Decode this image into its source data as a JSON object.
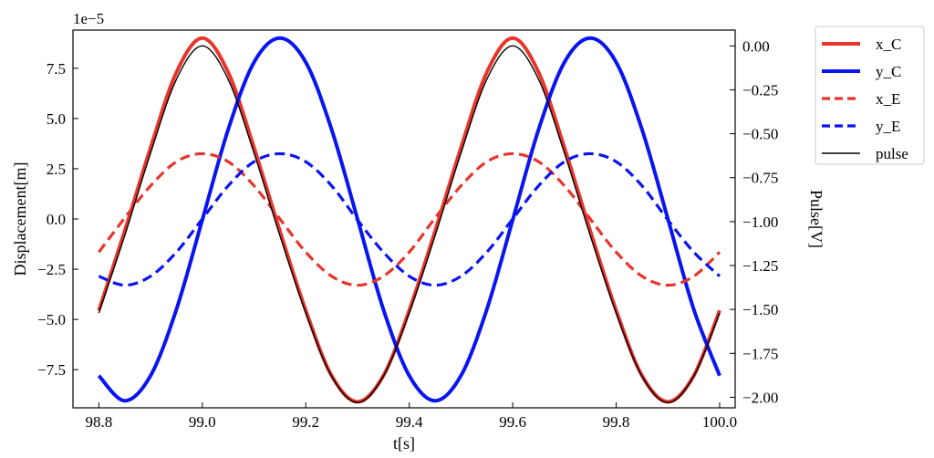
{
  "chart_data": {
    "type": "line",
    "xlabel": "t[s]",
    "ylabel": "Displacement[m]",
    "y2label": "Pulse[V]",
    "y_offset_text": "1e−5",
    "xlim": [
      98.75,
      100.03
    ],
    "ylim": [
      -9.4,
      9.4
    ],
    "y2lim": [
      -2.06,
      0.09
    ],
    "x_ticks": [
      98.8,
      99.0,
      99.2,
      99.4,
      99.6,
      99.8,
      100.0
    ],
    "x_tick_labels": [
      "98.8",
      "99.0",
      "99.2",
      "99.4",
      "99.6",
      "99.8",
      "100.0"
    ],
    "y_ticks": [
      -7.5,
      -5.0,
      -2.5,
      0.0,
      2.5,
      5.0,
      7.5
    ],
    "y_tick_labels": [
      "−7.5",
      "−5.0",
      "−2.5",
      "0.0",
      "2.5",
      "5.0",
      "7.5"
    ],
    "y2_ticks": [
      0.0,
      -0.25,
      -0.5,
      -0.75,
      -1.0,
      -1.25,
      -1.5,
      -1.75,
      -2.0
    ],
    "y2_tick_labels": [
      "0.00",
      "−0.25",
      "−0.50",
      "−0.75",
      "−1.00",
      "−1.25",
      "−1.50",
      "−1.75",
      "−2.00"
    ],
    "ticks_direction": "in",
    "grid": false,
    "legend_position": "outside-top-right",
    "series": [
      {
        "name": "x_C",
        "axis": "left",
        "color": "#e8352b",
        "style": "solid",
        "x": [
          98.8,
          98.85,
          98.9,
          98.95,
          99.0,
          99.05,
          99.1,
          99.15,
          99.2,
          99.25,
          99.3,
          99.35,
          99.4,
          99.45,
          99.5,
          99.55,
          99.6,
          99.65,
          99.7,
          99.75,
          99.8,
          99.85,
          99.9,
          99.95,
          100.0
        ],
        "y": [
          -4.55,
          -0.6,
          3.55,
          7.3,
          9.0,
          7.3,
          3.55,
          -0.6,
          -4.55,
          -7.8,
          -9.1,
          -7.8,
          -4.55,
          -0.6,
          3.55,
          7.3,
          9.0,
          7.3,
          3.55,
          -0.6,
          -4.55,
          -7.8,
          -9.1,
          -7.8,
          -4.55
        ]
      },
      {
        "name": "y_C",
        "axis": "left",
        "color": "#0a14f0",
        "style": "solid",
        "x": [
          98.8,
          98.85,
          98.9,
          98.95,
          99.0,
          99.05,
          99.1,
          99.15,
          99.2,
          99.25,
          99.3,
          99.35,
          99.4,
          99.45,
          99.5,
          99.55,
          99.6,
          99.65,
          99.7,
          99.75,
          99.8,
          99.85,
          99.9,
          99.95,
          100.0
        ],
        "y": [
          -7.8,
          -9.05,
          -7.8,
          -4.5,
          -0.05,
          4.45,
          7.8,
          9.0,
          7.8,
          4.45,
          0.0,
          -4.5,
          -7.8,
          -9.05,
          -7.8,
          -4.5,
          -0.05,
          4.45,
          7.8,
          9.0,
          7.8,
          4.45,
          0.0,
          -4.5,
          -7.8
        ]
      },
      {
        "name": "x_E",
        "axis": "left",
        "color": "#e8352b",
        "style": "dashed",
        "x": [
          98.8,
          98.85,
          98.9,
          98.95,
          99.0,
          99.05,
          99.1,
          99.15,
          99.2,
          99.25,
          99.3,
          99.35,
          99.4,
          99.45,
          99.5,
          99.55,
          99.6,
          99.65,
          99.7,
          99.75,
          99.8,
          99.85,
          99.9,
          99.95,
          100.0
        ],
        "y": [
          -1.65,
          0.05,
          1.65,
          2.85,
          3.25,
          2.85,
          1.65,
          0.0,
          -1.65,
          -2.85,
          -3.3,
          -2.85,
          -1.65,
          0.05,
          1.65,
          2.85,
          3.25,
          2.85,
          1.65,
          0.0,
          -1.65,
          -2.85,
          -3.3,
          -2.85,
          -1.65
        ]
      },
      {
        "name": "y_E",
        "axis": "left",
        "color": "#0a14f0",
        "style": "dashed",
        "x": [
          98.8,
          98.85,
          98.9,
          98.95,
          99.0,
          99.05,
          99.1,
          99.15,
          99.2,
          99.25,
          99.3,
          99.35,
          99.4,
          99.45,
          99.5,
          99.55,
          99.6,
          99.65,
          99.7,
          99.75,
          99.8,
          99.85,
          99.9,
          99.95,
          100.0
        ],
        "y": [
          -2.85,
          -3.3,
          -2.85,
          -1.65,
          0.0,
          1.65,
          2.85,
          3.25,
          2.85,
          1.65,
          -0.05,
          -1.65,
          -2.85,
          -3.3,
          -2.85,
          -1.65,
          0.0,
          1.65,
          2.85,
          3.25,
          2.85,
          1.65,
          -0.05,
          -1.65,
          -2.85
        ]
      },
      {
        "name": "pulse",
        "axis": "right",
        "color": "#000000",
        "style": "solid-thin",
        "x": [
          98.8,
          98.85,
          98.9,
          98.95,
          99.0,
          99.05,
          99.1,
          99.15,
          99.2,
          99.25,
          99.3,
          99.35,
          99.4,
          99.45,
          99.5,
          99.55,
          99.6,
          99.65,
          99.7,
          99.75,
          99.8,
          99.85,
          99.9,
          99.95,
          100.0
        ],
        "y": [
          -1.52,
          -1.08,
          -0.61,
          -0.19,
          0.0,
          -0.19,
          -0.61,
          -1.08,
          -1.52,
          -1.88,
          -2.03,
          -1.88,
          -1.52,
          -1.08,
          -0.61,
          -0.19,
          0.0,
          -0.19,
          -0.61,
          -1.08,
          -1.52,
          -1.88,
          -2.03,
          -1.88,
          -1.52
        ]
      }
    ]
  }
}
